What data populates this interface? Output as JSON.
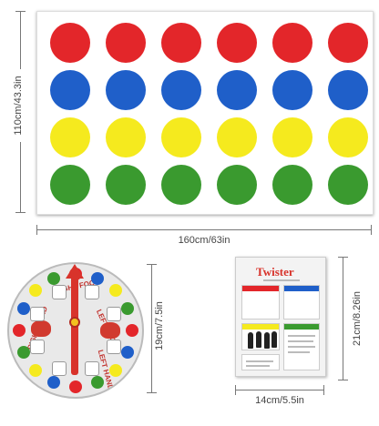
{
  "mat": {
    "rows": [
      {
        "color": "#e3262a",
        "count": 6
      },
      {
        "color": "#1f5fc9",
        "count": 6
      },
      {
        "color": "#f5ea1e",
        "count": 6
      },
      {
        "color": "#3a9a2f",
        "count": 6
      }
    ],
    "height_label": "110cm/43.3in",
    "width_label": "160cm/63in"
  },
  "spinner": {
    "size_label": "19cm/7.5in",
    "labels": {
      "right_foot": "RIGHT FOOT",
      "left_foot": "LEFT FOOT",
      "right_hand": "RIGHT HAND",
      "left_hand": "LEFT HAND"
    },
    "colors": [
      "#e3262a",
      "#1f5fc9",
      "#f5ea1e",
      "#3a9a2f"
    ]
  },
  "card": {
    "title": "Twister",
    "width_label": "14cm/5.5in",
    "height_label": "21cm/8.26in",
    "section_colors": [
      "#e3262a",
      "#1f5fc9",
      "#f5ea1e",
      "#3a9a2f"
    ]
  }
}
